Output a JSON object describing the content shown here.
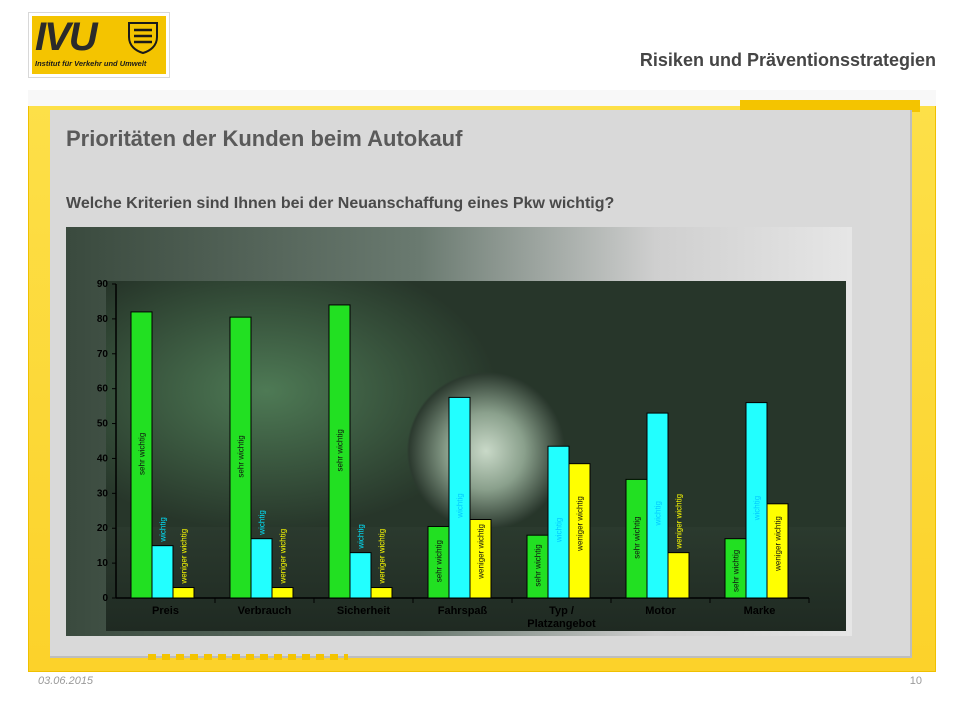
{
  "header": {
    "logo_text": "IVU",
    "logo_subtitle": "Institut für Verkehr und Umwelt",
    "title": "Risiken und Präventionsstrategien"
  },
  "slide": {
    "title": "Prioritäten der Kunden beim Autokauf",
    "subtitle": "Welche Kriterien sind Ihnen bei der Neuanschaffung eines Pkw wichtig?"
  },
  "footer": {
    "date": "03.06.2015",
    "page": "10"
  },
  "colors": {
    "accent_yellow": "#f4c400",
    "series_sehr_wichtig": "#22e022",
    "series_wichtig": "#22ffff",
    "series_weniger_wichtig": "#ffff00"
  },
  "chart_data": {
    "type": "bar",
    "title": "",
    "xlabel": "",
    "ylabel": "",
    "ylim": [
      0,
      90
    ],
    "yticks": [
      0,
      10,
      20,
      30,
      40,
      50,
      60,
      70,
      80,
      90
    ],
    "categories": [
      "Preis",
      "Verbrauch",
      "Sicherheit",
      "Fahrspaß",
      "Typ / Platzangebot",
      "Motor",
      "Marke"
    ],
    "category_labels": [
      [
        "Preis"
      ],
      [
        "Verbrauch"
      ],
      [
        "Sicherheit"
      ],
      [
        "Fahrspaß"
      ],
      [
        "Typ /",
        "Platzangebot"
      ],
      [
        "Motor"
      ],
      [
        "Marke"
      ]
    ],
    "series": [
      {
        "name": "sehr wichtig",
        "values": [
          82,
          80.5,
          84,
          20.5,
          18,
          34,
          17
        ]
      },
      {
        "name": "wichtig",
        "values": [
          15,
          17,
          13,
          57.5,
          43.5,
          53,
          56
        ]
      },
      {
        "name": "weniger wichtig",
        "values": [
          3,
          3,
          3,
          22.5,
          38.5,
          13,
          27
        ]
      }
    ],
    "grid": false,
    "legend": "none"
  }
}
